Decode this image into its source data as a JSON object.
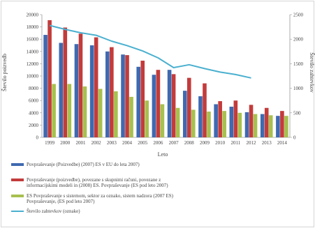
{
  "chart_data": {
    "type": "bar",
    "xlabel": "Leto",
    "ylabel": "Število poizvedb",
    "ylabel_right": "Število zahtevkov",
    "ylim": [
      0,
      20000
    ],
    "ylim_right": [
      0,
      2500
    ],
    "yticks": [
      "0",
      "2000",
      "4000",
      "6000",
      "8000",
      "10000",
      "12000",
      "14000",
      "16000",
      "18000",
      "20000"
    ],
    "yticks_right": [
      "0",
      "500",
      "1000",
      "1500",
      "2000",
      "2500"
    ],
    "categories": [
      "1999",
      "2000",
      "2001",
      "2002",
      "2003",
      "2004",
      "2005",
      "2006",
      "2007",
      "2008",
      "2009",
      "2010",
      "2011",
      "2012",
      "2013",
      "2014"
    ],
    "series": [
      {
        "name": "Povpraševanje (Poizvedbe) (2007) ES v EU do leta 2007)",
        "color": "#3f69b0",
        "axis": "left",
        "values": [
          16700,
          15400,
          15200,
          15000,
          14000,
          13500,
          11500,
          10200,
          11000,
          7600,
          6700,
          5400,
          5000,
          4100,
          3800,
          3500
        ]
      },
      {
        "name": "Povpraševanje (poizvedbe), povezane s skupnimi računi, povezane z informacijskimi modeli in (2008) ES. Povpraševanje (ES pod leto 2007)",
        "color": "#c33b3b",
        "axis": "left",
        "values": [
          19100,
          17900,
          16900,
          16300,
          14700,
          13400,
          12500,
          11000,
          10300,
          9700,
          8800,
          5900,
          6000,
          5300,
          4800,
          4300
        ]
      },
      {
        "name": "ES Povpraševanje s sistemom, sektor za oznako, sistem nadzora (2007 ES) Povpraševanje, (ES pod leto 2007)",
        "color": "#a7c04e",
        "axis": "left",
        "values": [
          8700,
          8700,
          8300,
          7900,
          7500,
          6600,
          6000,
          5400,
          4800,
          4500,
          4200,
          4300,
          4000,
          3800,
          3600,
          3500
        ]
      },
      {
        "name": "Število zahtevkov (oznake)",
        "color": "#4ab0cf",
        "axis": "right",
        "type": "line",
        "values": [
          2280,
          2200,
          2130,
          2080,
          1960,
          1870,
          1760,
          1620,
          1420,
          1480,
          1400,
          1330,
          1280,
          1210,
          null,
          null
        ]
      }
    ],
    "grid": false,
    "legend_position": "bottom"
  }
}
